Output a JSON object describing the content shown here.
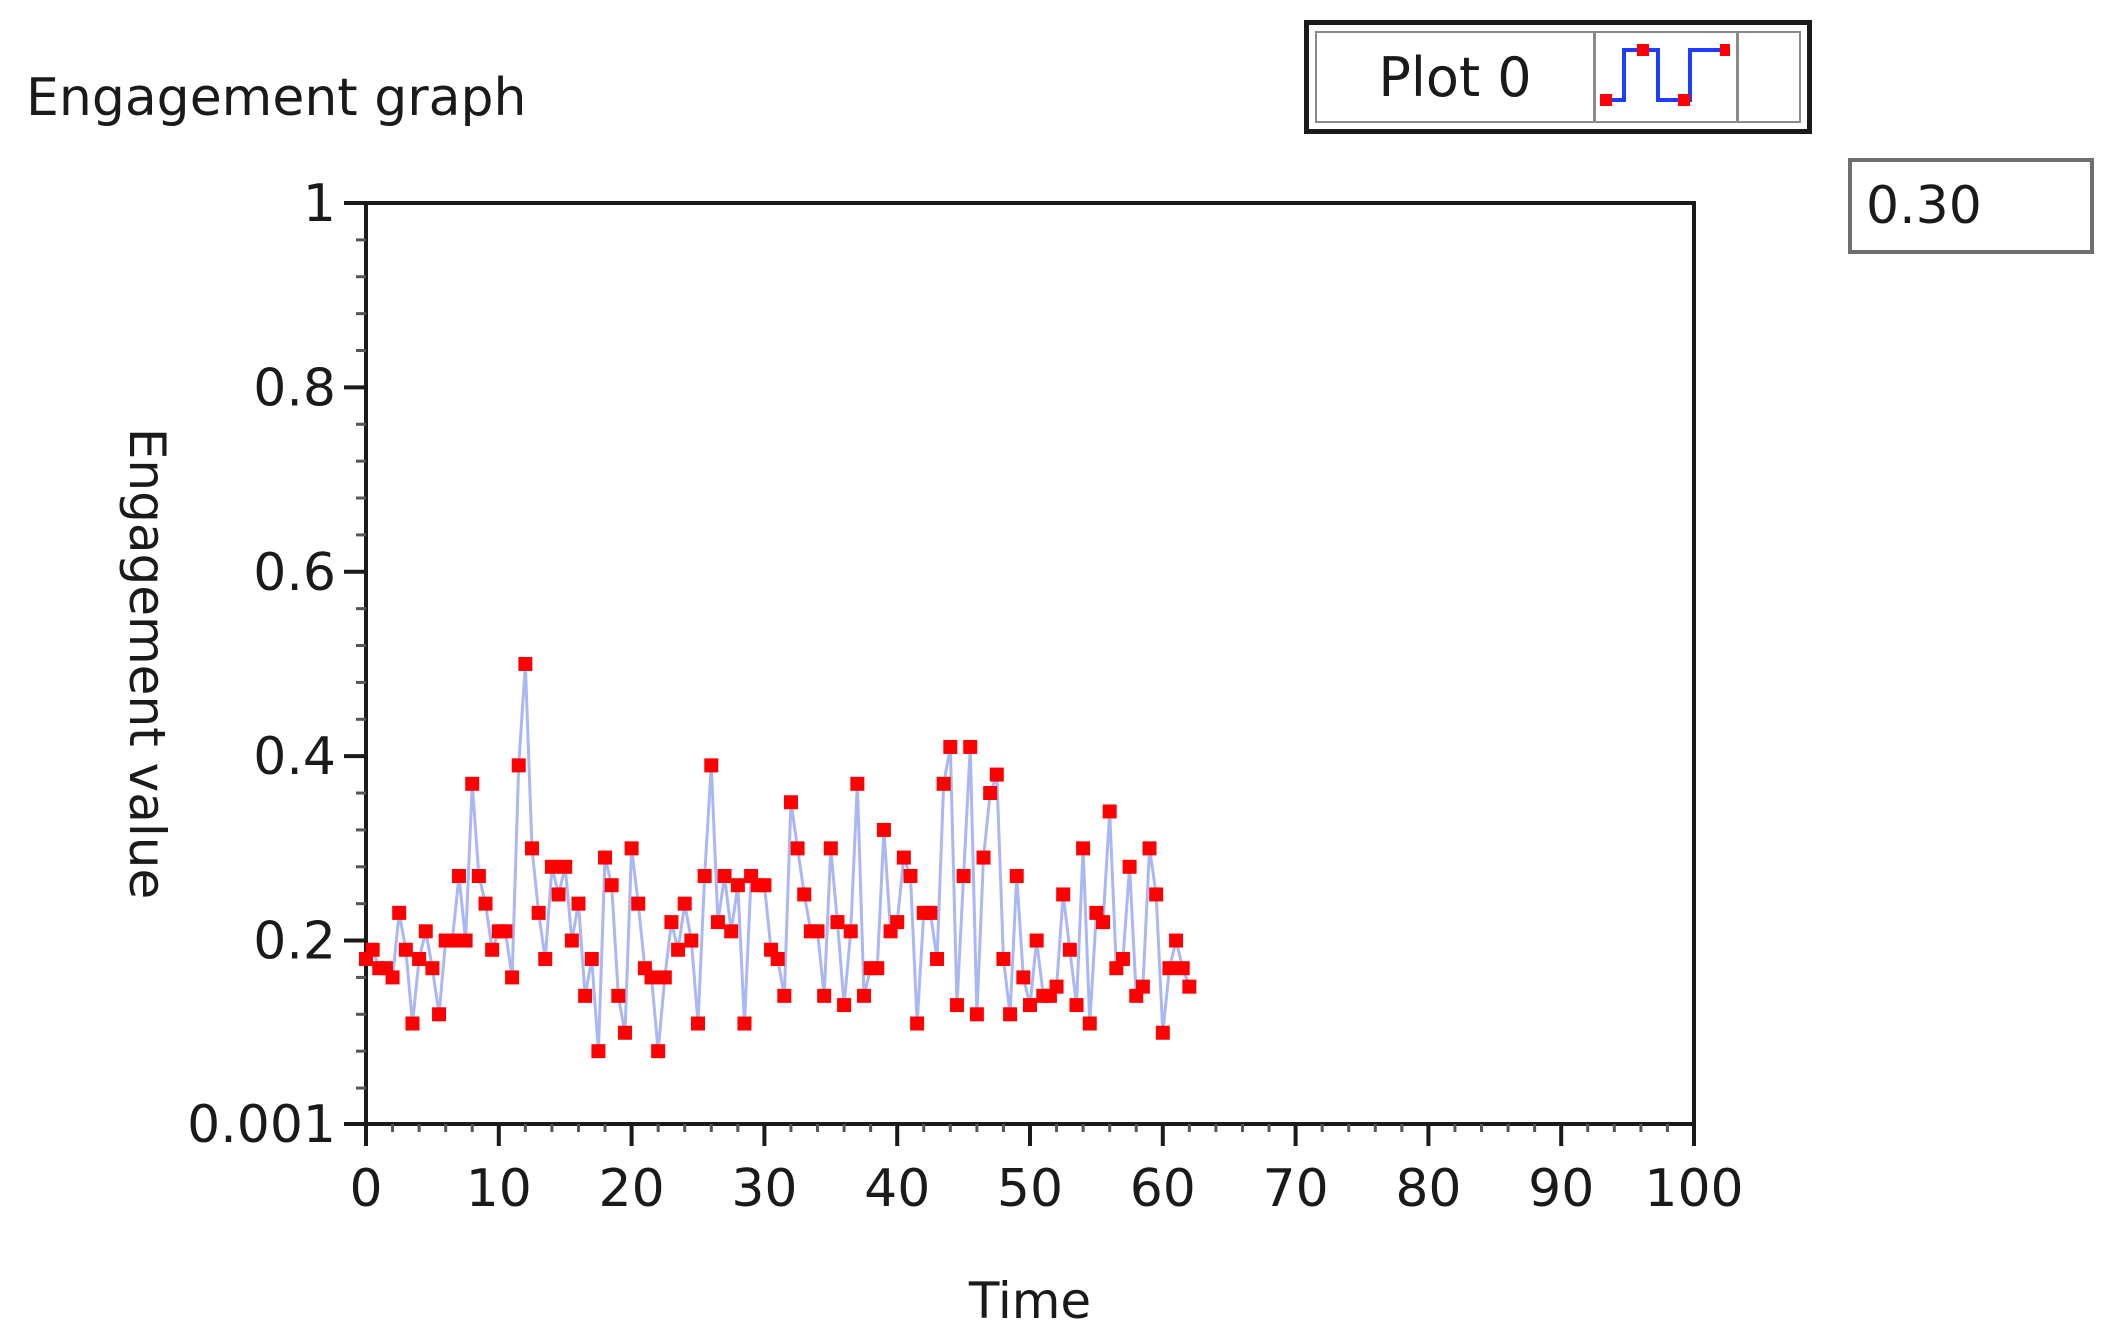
{
  "title": "Engagement graph",
  "legend": {
    "label": "Plot 0",
    "icon": "step-plot-icon"
  },
  "value_box": "0.30",
  "colors": {
    "line": "#a9b8f5",
    "point": "#ff0000",
    "icon_line": "#1f3cff"
  },
  "chart_data": {
    "type": "line",
    "title": "Engagement graph",
    "xlabel": "Time",
    "ylabel": "Engagement value",
    "xlim": [
      0,
      100
    ],
    "ylim": [
      0.001,
      1
    ],
    "x_ticks": [
      "0",
      "10",
      "20",
      "30",
      "40",
      "50",
      "60",
      "70",
      "80",
      "90",
      "100"
    ],
    "y_ticks": [
      "0.001",
      "0.2",
      "0.4",
      "0.6",
      "0.8",
      "1"
    ],
    "y_tick_values": [
      0.001,
      0.2,
      0.4,
      0.6,
      0.8,
      1
    ],
    "grid": false,
    "legend_position": "top-right",
    "series": [
      {
        "name": "Plot 0",
        "marker": "square",
        "x": [
          0,
          0.5,
          1,
          1.5,
          2,
          2.5,
          3,
          3.5,
          4,
          4.5,
          5,
          5.5,
          6,
          6.5,
          7,
          7.5,
          8,
          8.5,
          9,
          9.5,
          10,
          10.5,
          11,
          11.5,
          12,
          12.5,
          13,
          13.5,
          14,
          14.5,
          15,
          15.5,
          16,
          16.5,
          17,
          17.5,
          18,
          18.5,
          19,
          19.5,
          20,
          20.5,
          21,
          21.5,
          22,
          22.5,
          23,
          23.5,
          24,
          24.5,
          25,
          25.5,
          26,
          26.5,
          27,
          27.5,
          28,
          28.5,
          29,
          29.5,
          30,
          30.5,
          31,
          31.5,
          32,
          32.5,
          33,
          33.5,
          34,
          34.5,
          35,
          35.5,
          36,
          36.5,
          37,
          37.5,
          38,
          38.5,
          39,
          39.5,
          40,
          40.5,
          41,
          41.5,
          42,
          42.5,
          43,
          43.5,
          44,
          44.5,
          45,
          45.5,
          46,
          46.5,
          47,
          47.5,
          48,
          48.5,
          49,
          49.5,
          50,
          50.5,
          51,
          51.5,
          52,
          52.5,
          53,
          53.5,
          54,
          54.5,
          55,
          55.5,
          56,
          56.5,
          57,
          57.5,
          58,
          58.5,
          59,
          59.5,
          60,
          60.5,
          61,
          61.5,
          62
        ],
        "y": [
          0.18,
          0.19,
          0.17,
          0.17,
          0.16,
          0.23,
          0.19,
          0.11,
          0.18,
          0.21,
          0.17,
          0.12,
          0.2,
          0.2,
          0.27,
          0.2,
          0.37,
          0.27,
          0.24,
          0.19,
          0.21,
          0.21,
          0.16,
          0.39,
          0.5,
          0.3,
          0.23,
          0.18,
          0.28,
          0.25,
          0.28,
          0.2,
          0.24,
          0.14,
          0.18,
          0.08,
          0.29,
          0.26,
          0.14,
          0.1,
          0.3,
          0.24,
          0.17,
          0.16,
          0.08,
          0.16,
          0.22,
          0.19,
          0.24,
          0.2,
          0.11,
          0.27,
          0.39,
          0.22,
          0.27,
          0.21,
          0.26,
          0.11,
          0.27,
          0.26,
          0.26,
          0.19,
          0.18,
          0.14,
          0.35,
          0.3,
          0.25,
          0.21,
          0.21,
          0.14,
          0.3,
          0.22,
          0.13,
          0.21,
          0.37,
          0.14,
          0.17,
          0.17,
          0.32,
          0.21,
          0.22,
          0.29,
          0.27,
          0.11,
          0.23,
          0.23,
          0.18,
          0.37,
          0.41,
          0.13,
          0.27,
          0.41,
          0.12,
          0.29,
          0.36,
          0.38,
          0.18,
          0.12,
          0.27,
          0.16,
          0.13,
          0.2,
          0.14,
          0.14,
          0.15,
          0.25,
          0.19,
          0.13,
          0.3,
          0.11,
          0.23,
          0.22,
          0.34,
          0.17,
          0.18,
          0.28,
          0.14,
          0.15,
          0.3,
          0.25,
          0.1,
          0.17,
          0.2,
          0.17,
          0.15
        ]
      }
    ]
  }
}
